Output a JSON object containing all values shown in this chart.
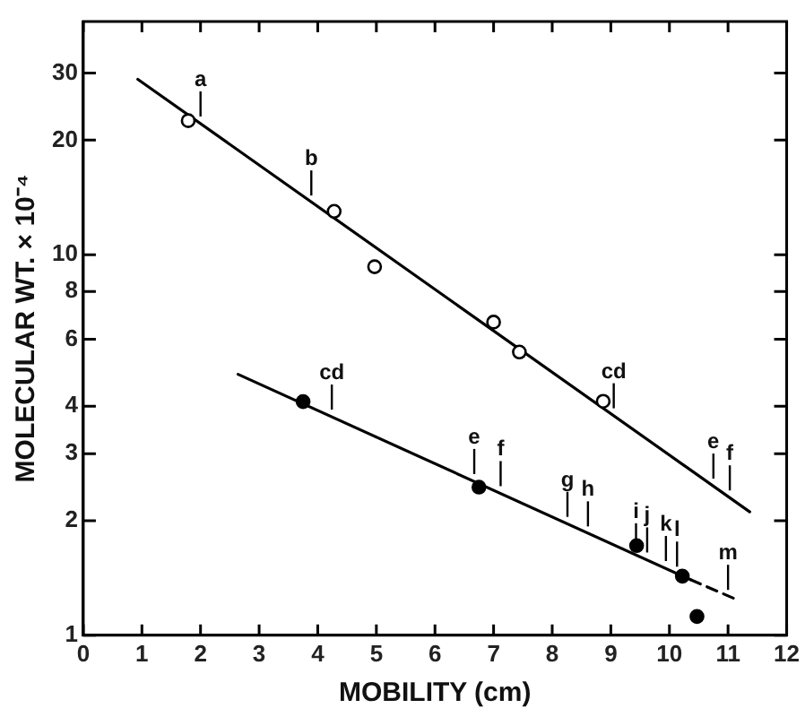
{
  "chart_data": {
    "type": "scatter",
    "xlabel": "MOBILITY (cm)",
    "ylabel": "MOLECULAR WT. × 10⁻⁴",
    "log": "y",
    "xlim": [
      0,
      12
    ],
    "xticks": [
      0,
      1,
      2,
      3,
      4,
      5,
      6,
      7,
      8,
      9,
      10,
      11,
      12
    ],
    "ylim": [
      1,
      41
    ],
    "yticks": [
      1,
      2,
      3,
      4,
      6,
      8,
      10,
      20,
      30
    ],
    "grid": false,
    "legend": false,
    "marker": "circle",
    "series": [
      {
        "type": "scatter",
        "color": "#ffffff",
        "x": [
          1.79,
          4.28,
          4.97,
          7.0,
          7.44,
          8.87
        ],
        "values": [
          22.5,
          13.0,
          9.3,
          6.65,
          5.55,
          4.12
        ]
      },
      {
        "type": "line",
        "color": "#000000",
        "marker": "none",
        "x": [
          0.93,
          11.37
        ],
        "values": [
          28.9,
          2.11
        ]
      },
      {
        "type": "scatter",
        "color": "#000000",
        "x": [
          3.75,
          6.75,
          9.44,
          10.22,
          10.47
        ],
        "values": [
          4.11,
          2.45,
          1.72,
          1.43,
          1.12
        ]
      },
      {
        "type": "line",
        "color": "#000000",
        "marker": "none",
        "x": [
          2.64,
          10.36
        ],
        "values": [
          4.85,
          1.4
        ]
      },
      {
        "type": "line",
        "color": "#000000",
        "marker": "none",
        "line_style": "dashed",
        "x": [
          10.36,
          11.1
        ],
        "values": [
          1.4,
          1.25
        ]
      }
    ],
    "annotations": [
      {
        "text": "a",
        "x": 2.0,
        "y": 22.1
      },
      {
        "text": "b",
        "x": 3.89,
        "y": 13.7
      },
      {
        "text": "cd",
        "x": 9.05,
        "y": 3.78
      },
      {
        "text": "e",
        "x": 10.75,
        "y": 2.47
      },
      {
        "text": "f",
        "x": 11.03,
        "y": 2.3
      },
      {
        "text": "cd",
        "x": 4.24,
        "y": 3.75
      },
      {
        "text": "e",
        "x": 6.67,
        "y": 2.54
      },
      {
        "text": "f",
        "x": 7.12,
        "y": 2.36
      },
      {
        "text": "g",
        "x": 8.26,
        "y": 1.96
      },
      {
        "text": "h",
        "x": 8.61,
        "y": 1.85
      },
      {
        "text": "i",
        "x": 9.43,
        "y": 1.62
      },
      {
        "text": "j",
        "x": 9.62,
        "y": 1.58
      },
      {
        "text": "k",
        "x": 9.94,
        "y": 1.5
      },
      {
        "text": "l",
        "x": 10.13,
        "y": 1.45
      },
      {
        "text": "m",
        "x": 11.0,
        "y": 1.26
      }
    ]
  }
}
